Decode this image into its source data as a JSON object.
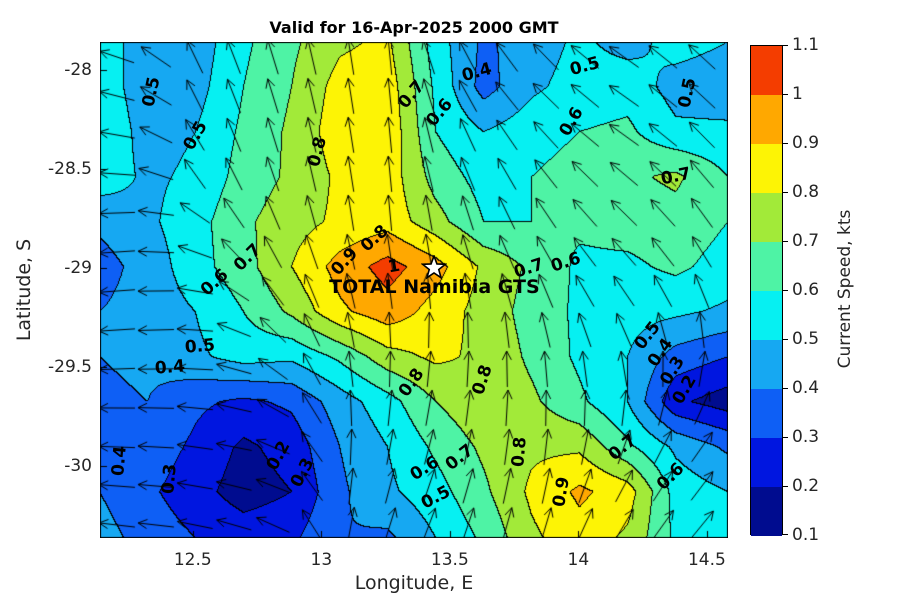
{
  "chart_data": {
    "type": "heatmap",
    "subtype": "filled-contour-with-quiver-arrows",
    "title": "Valid for 16-Apr-2025 2000 GMT",
    "xlabel": "Longitude, E",
    "ylabel": "Latitude, S",
    "xlim": [
      12.139,
      14.582
    ],
    "ylim": [
      -30.364,
      -27.859
    ],
    "xticks": [
      12.5,
      13,
      13.5,
      14,
      14.5
    ],
    "yticks": [
      -28,
      -28.5,
      -29,
      -29.5,
      -30
    ],
    "contour_levels": [
      0.1,
      0.2,
      0.3,
      0.4,
      0.5,
      0.6,
      0.7,
      0.8,
      0.9,
      1.0,
      1.1
    ],
    "colorbar": {
      "label": "Current Speed, kts",
      "ticks": [
        0.1,
        0.2,
        0.3,
        0.4,
        0.5,
        0.6,
        0.7,
        0.8,
        0.9,
        1.0,
        1.1
      ],
      "band_colors": [
        "#000c8f",
        "#0016e0",
        "#0e5ff5",
        "#16a8f2",
        "#06f0f2",
        "#4ef3a5",
        "#a2ea39",
        "#fdf405",
        "#ffa800",
        "#f43d00"
      ]
    },
    "grid": {
      "lon": [
        12.139,
        12.326,
        12.512,
        12.699,
        12.886,
        13.073,
        13.259,
        13.446,
        13.633,
        13.819,
        14.006,
        14.193,
        14.38,
        14.582
      ],
      "lat": [
        -27.859,
        -28.086,
        -28.313,
        -28.541,
        -28.768,
        -28.995,
        -29.222,
        -29.45,
        -29.677,
        -29.904,
        -30.131,
        -30.364
      ],
      "speed_kts": [
        [
          0.55,
          0.45,
          0.44,
          0.58,
          0.68,
          0.78,
          0.82,
          0.55,
          0.38,
          0.45,
          0.52,
          0.46,
          0.54,
          0.5
        ],
        [
          0.56,
          0.44,
          0.46,
          0.6,
          0.7,
          0.84,
          0.86,
          0.58,
          0.36,
          0.48,
          0.54,
          0.56,
          0.46,
          0.44
        ],
        [
          0.58,
          0.46,
          0.5,
          0.62,
          0.72,
          0.86,
          0.88,
          0.6,
          0.5,
          0.56,
          0.6,
          0.62,
          0.52,
          0.52
        ],
        [
          0.56,
          0.48,
          0.52,
          0.64,
          0.72,
          0.82,
          0.86,
          0.66,
          0.56,
          0.6,
          0.64,
          0.68,
          0.72,
          0.6
        ],
        [
          0.42,
          0.48,
          0.56,
          0.68,
          0.76,
          0.82,
          0.86,
          0.74,
          0.6,
          0.6,
          0.62,
          0.64,
          0.66,
          0.6
        ],
        [
          0.36,
          0.44,
          0.56,
          0.66,
          0.8,
          0.94,
          1.04,
          0.94,
          0.78,
          0.68,
          0.58,
          0.58,
          0.62,
          0.56
        ],
        [
          0.4,
          0.44,
          0.5,
          0.6,
          0.72,
          0.88,
          0.96,
          0.86,
          0.76,
          0.66,
          0.58,
          0.54,
          0.52,
          0.48
        ],
        [
          0.4,
          0.42,
          0.48,
          0.54,
          0.52,
          0.62,
          0.76,
          0.82,
          0.78,
          0.68,
          0.58,
          0.5,
          0.36,
          0.3
        ],
        [
          0.38,
          0.4,
          0.32,
          0.28,
          0.32,
          0.45,
          0.56,
          0.7,
          0.78,
          0.72,
          0.62,
          0.5,
          0.22,
          0.15
        ],
        [
          0.4,
          0.36,
          0.28,
          0.18,
          0.24,
          0.4,
          0.5,
          0.62,
          0.72,
          0.78,
          0.78,
          0.62,
          0.48,
          0.38
        ],
        [
          0.4,
          0.32,
          0.24,
          0.15,
          0.2,
          0.38,
          0.48,
          0.56,
          0.68,
          0.82,
          0.92,
          0.85,
          0.56,
          0.5
        ],
        [
          0.44,
          0.36,
          0.3,
          0.26,
          0.28,
          0.4,
          0.38,
          0.5,
          0.62,
          0.78,
          0.86,
          0.78,
          0.58,
          0.52
        ]
      ]
    },
    "quiver": {
      "angles_deg_ccw_from_east": [
        [
          165,
          150,
          115,
          110,
          105,
          100,
          95,
          110,
          120,
          130,
          140,
          145,
          140,
          135
        ],
        [
          170,
          155,
          115,
          110,
          105,
          100,
          95,
          110,
          125,
          135,
          140,
          145,
          140,
          135
        ],
        [
          175,
          160,
          120,
          110,
          105,
          100,
          95,
          105,
          120,
          130,
          140,
          145,
          140,
          130
        ],
        [
          180,
          170,
          125,
          115,
          105,
          100,
          95,
          105,
          115,
          125,
          135,
          140,
          135,
          125
        ],
        [
          185,
          180,
          150,
          120,
          110,
          100,
          95,
          100,
          110,
          120,
          130,
          135,
          130,
          120
        ],
        [
          185,
          182,
          165,
          130,
          115,
          105,
          100,
          100,
          110,
          115,
          125,
          130,
          125,
          115
        ],
        [
          185,
          183,
          175,
          150,
          120,
          105,
          95,
          90,
          95,
          105,
          115,
          120,
          110,
          100
        ],
        [
          183,
          182,
          178,
          160,
          130,
          100,
          90,
          85,
          90,
          95,
          100,
          105,
          90,
          80
        ],
        [
          180,
          180,
          175,
          165,
          140,
          95,
          85,
          80,
          85,
          90,
          90,
          85,
          75,
          60
        ],
        [
          178,
          178,
          172,
          168,
          150,
          90,
          80,
          75,
          80,
          85,
          80,
          70,
          60,
          50
        ],
        [
          175,
          176,
          170,
          165,
          155,
          85,
          75,
          70,
          75,
          80,
          70,
          60,
          55,
          50
        ],
        [
          172,
          174,
          168,
          162,
          150,
          80,
          72,
          68,
          72,
          75,
          65,
          58,
          52,
          48
        ]
      ]
    },
    "contour_labels": [
      {
        "lon": 12.341,
        "lat": -28.112,
        "text": "0.5",
        "rot": -78
      },
      {
        "lon": 12.512,
        "lat": -28.334,
        "text": "0.5",
        "rot": -60
      },
      {
        "lon": 12.987,
        "lat": -28.415,
        "text": "0.8",
        "rot": -75
      },
      {
        "lon": 13.353,
        "lat": -28.127,
        "text": "0.7",
        "rot": -50
      },
      {
        "lon": 13.462,
        "lat": -28.218,
        "text": "0.6",
        "rot": -50
      },
      {
        "lon": 13.606,
        "lat": -28.016,
        "text": "0.4",
        "rot": -15
      },
      {
        "lon": 14.026,
        "lat": -27.985,
        "text": "0.5",
        "rot": -15
      },
      {
        "lon": 14.427,
        "lat": -28.117,
        "text": "0.5",
        "rot": -78
      },
      {
        "lon": 13.975,
        "lat": -28.263,
        "text": "0.6",
        "rot": -60
      },
      {
        "lon": 14.38,
        "lat": -28.541,
        "text": "0.7",
        "rot": -12
      },
      {
        "lon": 12.715,
        "lat": -28.95,
        "text": "0.7",
        "rot": -45
      },
      {
        "lon": 12.586,
        "lat": -29.076,
        "text": "0.6",
        "rot": -42
      },
      {
        "lon": 12.528,
        "lat": -29.399,
        "text": "0.5",
        "rot": -5
      },
      {
        "lon": 12.411,
        "lat": -29.505,
        "text": "0.4",
        "rot": -5
      },
      {
        "lon": 12.217,
        "lat": -29.975,
        "text": "0.4",
        "rot": -85
      },
      {
        "lon": 12.411,
        "lat": -30.066,
        "text": "0.3",
        "rot": -85
      },
      {
        "lon": 12.835,
        "lat": -29.95,
        "text": "0.2",
        "rot": -62
      },
      {
        "lon": 12.928,
        "lat": -30.036,
        "text": "0.3",
        "rot": -62
      },
      {
        "lon": 13.091,
        "lat": -28.97,
        "text": "0.9",
        "rot": -48
      },
      {
        "lon": 13.282,
        "lat": -28.995,
        "text": "1",
        "rot": -10
      },
      {
        "lon": 13.208,
        "lat": -28.854,
        "text": "0.8",
        "rot": -42
      },
      {
        "lon": 13.807,
        "lat": -29.005,
        "text": "0.7",
        "rot": -18
      },
      {
        "lon": 13.951,
        "lat": -28.975,
        "text": "0.6",
        "rot": -18
      },
      {
        "lon": 13.353,
        "lat": -29.581,
        "text": "0.8",
        "rot": -55
      },
      {
        "lon": 13.629,
        "lat": -29.566,
        "text": "0.8",
        "rot": -72
      },
      {
        "lon": 13.539,
        "lat": -29.96,
        "text": "0.7",
        "rot": -38
      },
      {
        "lon": 13.403,
        "lat": -30.015,
        "text": "0.6",
        "rot": -32
      },
      {
        "lon": 13.446,
        "lat": -30.162,
        "text": "0.5",
        "rot": -28
      },
      {
        "lon": 13.773,
        "lat": -29.929,
        "text": "0.8",
        "rot": -85
      },
      {
        "lon": 13.936,
        "lat": -30.131,
        "text": "0.9",
        "rot": -80
      },
      {
        "lon": 14.271,
        "lat": -29.344,
        "text": "0.5",
        "rot": -52
      },
      {
        "lon": 14.321,
        "lat": -29.43,
        "text": "0.4",
        "rot": -55
      },
      {
        "lon": 14.368,
        "lat": -29.521,
        "text": "0.3",
        "rot": -58
      },
      {
        "lon": 14.415,
        "lat": -29.617,
        "text": "0.2",
        "rot": -60
      },
      {
        "lon": 14.174,
        "lat": -29.91,
        "text": "0.7",
        "rot": -40
      },
      {
        "lon": 14.36,
        "lat": -30.056,
        "text": "0.6",
        "rot": -45
      }
    ],
    "station": {
      "lon": 13.44,
      "lat": -29.0,
      "label": "TOTAL Namibia GTS"
    }
  }
}
